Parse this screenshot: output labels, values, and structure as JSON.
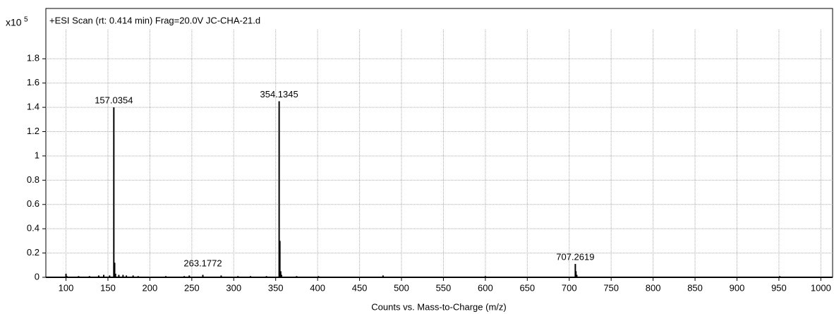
{
  "chart_data": {
    "type": "spectrum",
    "title": "+ESI Scan (rt: 0.414 min) Frag=20.0V JC-CHA-21.d",
    "y_label": "x10",
    "y_exponent": "5",
    "x_label": "Counts vs. Mass-to-Charge (m/z)",
    "color": "#000000",
    "grid": true,
    "xlim": [
      76,
      1014
    ],
    "ylim": [
      0,
      2.04
    ],
    "xticks": [
      100,
      150,
      200,
      250,
      300,
      350,
      400,
      450,
      500,
      550,
      600,
      650,
      700,
      750,
      800,
      850,
      900,
      950,
      1000
    ],
    "yticks": [
      0,
      0.2,
      0.4,
      0.6,
      0.8,
      1,
      1.2,
      1.4,
      1.6,
      1.8
    ],
    "x": [
      100,
      101,
      115,
      128,
      139,
      145,
      152,
      157.0354,
      158,
      159,
      163,
      168,
      172,
      180,
      186,
      219,
      241,
      247,
      263.1772,
      285,
      305,
      320,
      339,
      354.1345,
      355,
      356,
      357,
      375,
      401,
      478,
      600,
      707.2619,
      708,
      709,
      951
    ],
    "values": [
      0.03,
      0.01,
      0.01,
      0.01,
      0.015,
      0.02,
      0.015,
      1.4,
      0.12,
      0.03,
      0.02,
      0.02,
      0.015,
      0.015,
      0.01,
      0.01,
      0.01,
      0.015,
      0.02,
      0.015,
      0.01,
      0.01,
      0.01,
      1.45,
      0.3,
      0.05,
      0.02,
      0.01,
      0.01,
      0.015,
      0.01,
      0.11,
      0.05,
      0.02,
      0.01
    ],
    "annotations": [
      157.0354,
      263.1772,
      354.1345,
      707.2619
    ]
  }
}
